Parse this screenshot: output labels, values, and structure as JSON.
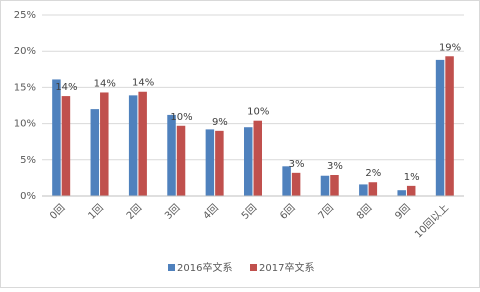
{
  "chart_data": {
    "type": "bar",
    "categories": [
      "0回",
      "1回",
      "2回",
      "3回",
      "4回",
      "5回",
      "6回",
      "7回",
      "8回",
      "9回",
      "10回以上"
    ],
    "series": [
      {
        "name": "2016卒文系",
        "color": "#4f81bd",
        "values": [
          16.1,
          12.0,
          13.9,
          11.2,
          9.2,
          9.5,
          4.1,
          2.8,
          1.6,
          0.8,
          18.8
        ]
      },
      {
        "name": "2017卒文系",
        "color": "#c0504d",
        "values": [
          13.8,
          14.3,
          14.4,
          9.7,
          9.0,
          10.4,
          3.2,
          2.9,
          1.9,
          1.4,
          19.3
        ],
        "value_labels": [
          "14%",
          "14%",
          "14%",
          "10%",
          "9%",
          "10%",
          "3%",
          "3%",
          "2%",
          "1%",
          "19%"
        ]
      }
    ],
    "ylim": [
      0,
      25
    ],
    "yticks": [
      {
        "value": 0,
        "label": "0%"
      },
      {
        "value": 5,
        "label": "5%"
      },
      {
        "value": 10,
        "label": "10%"
      },
      {
        "value": 15,
        "label": "15%"
      },
      {
        "value": 20,
        "label": "20%"
      },
      {
        "value": 25,
        "label": "25%"
      }
    ],
    "grid": true,
    "legend": "bottom"
  }
}
